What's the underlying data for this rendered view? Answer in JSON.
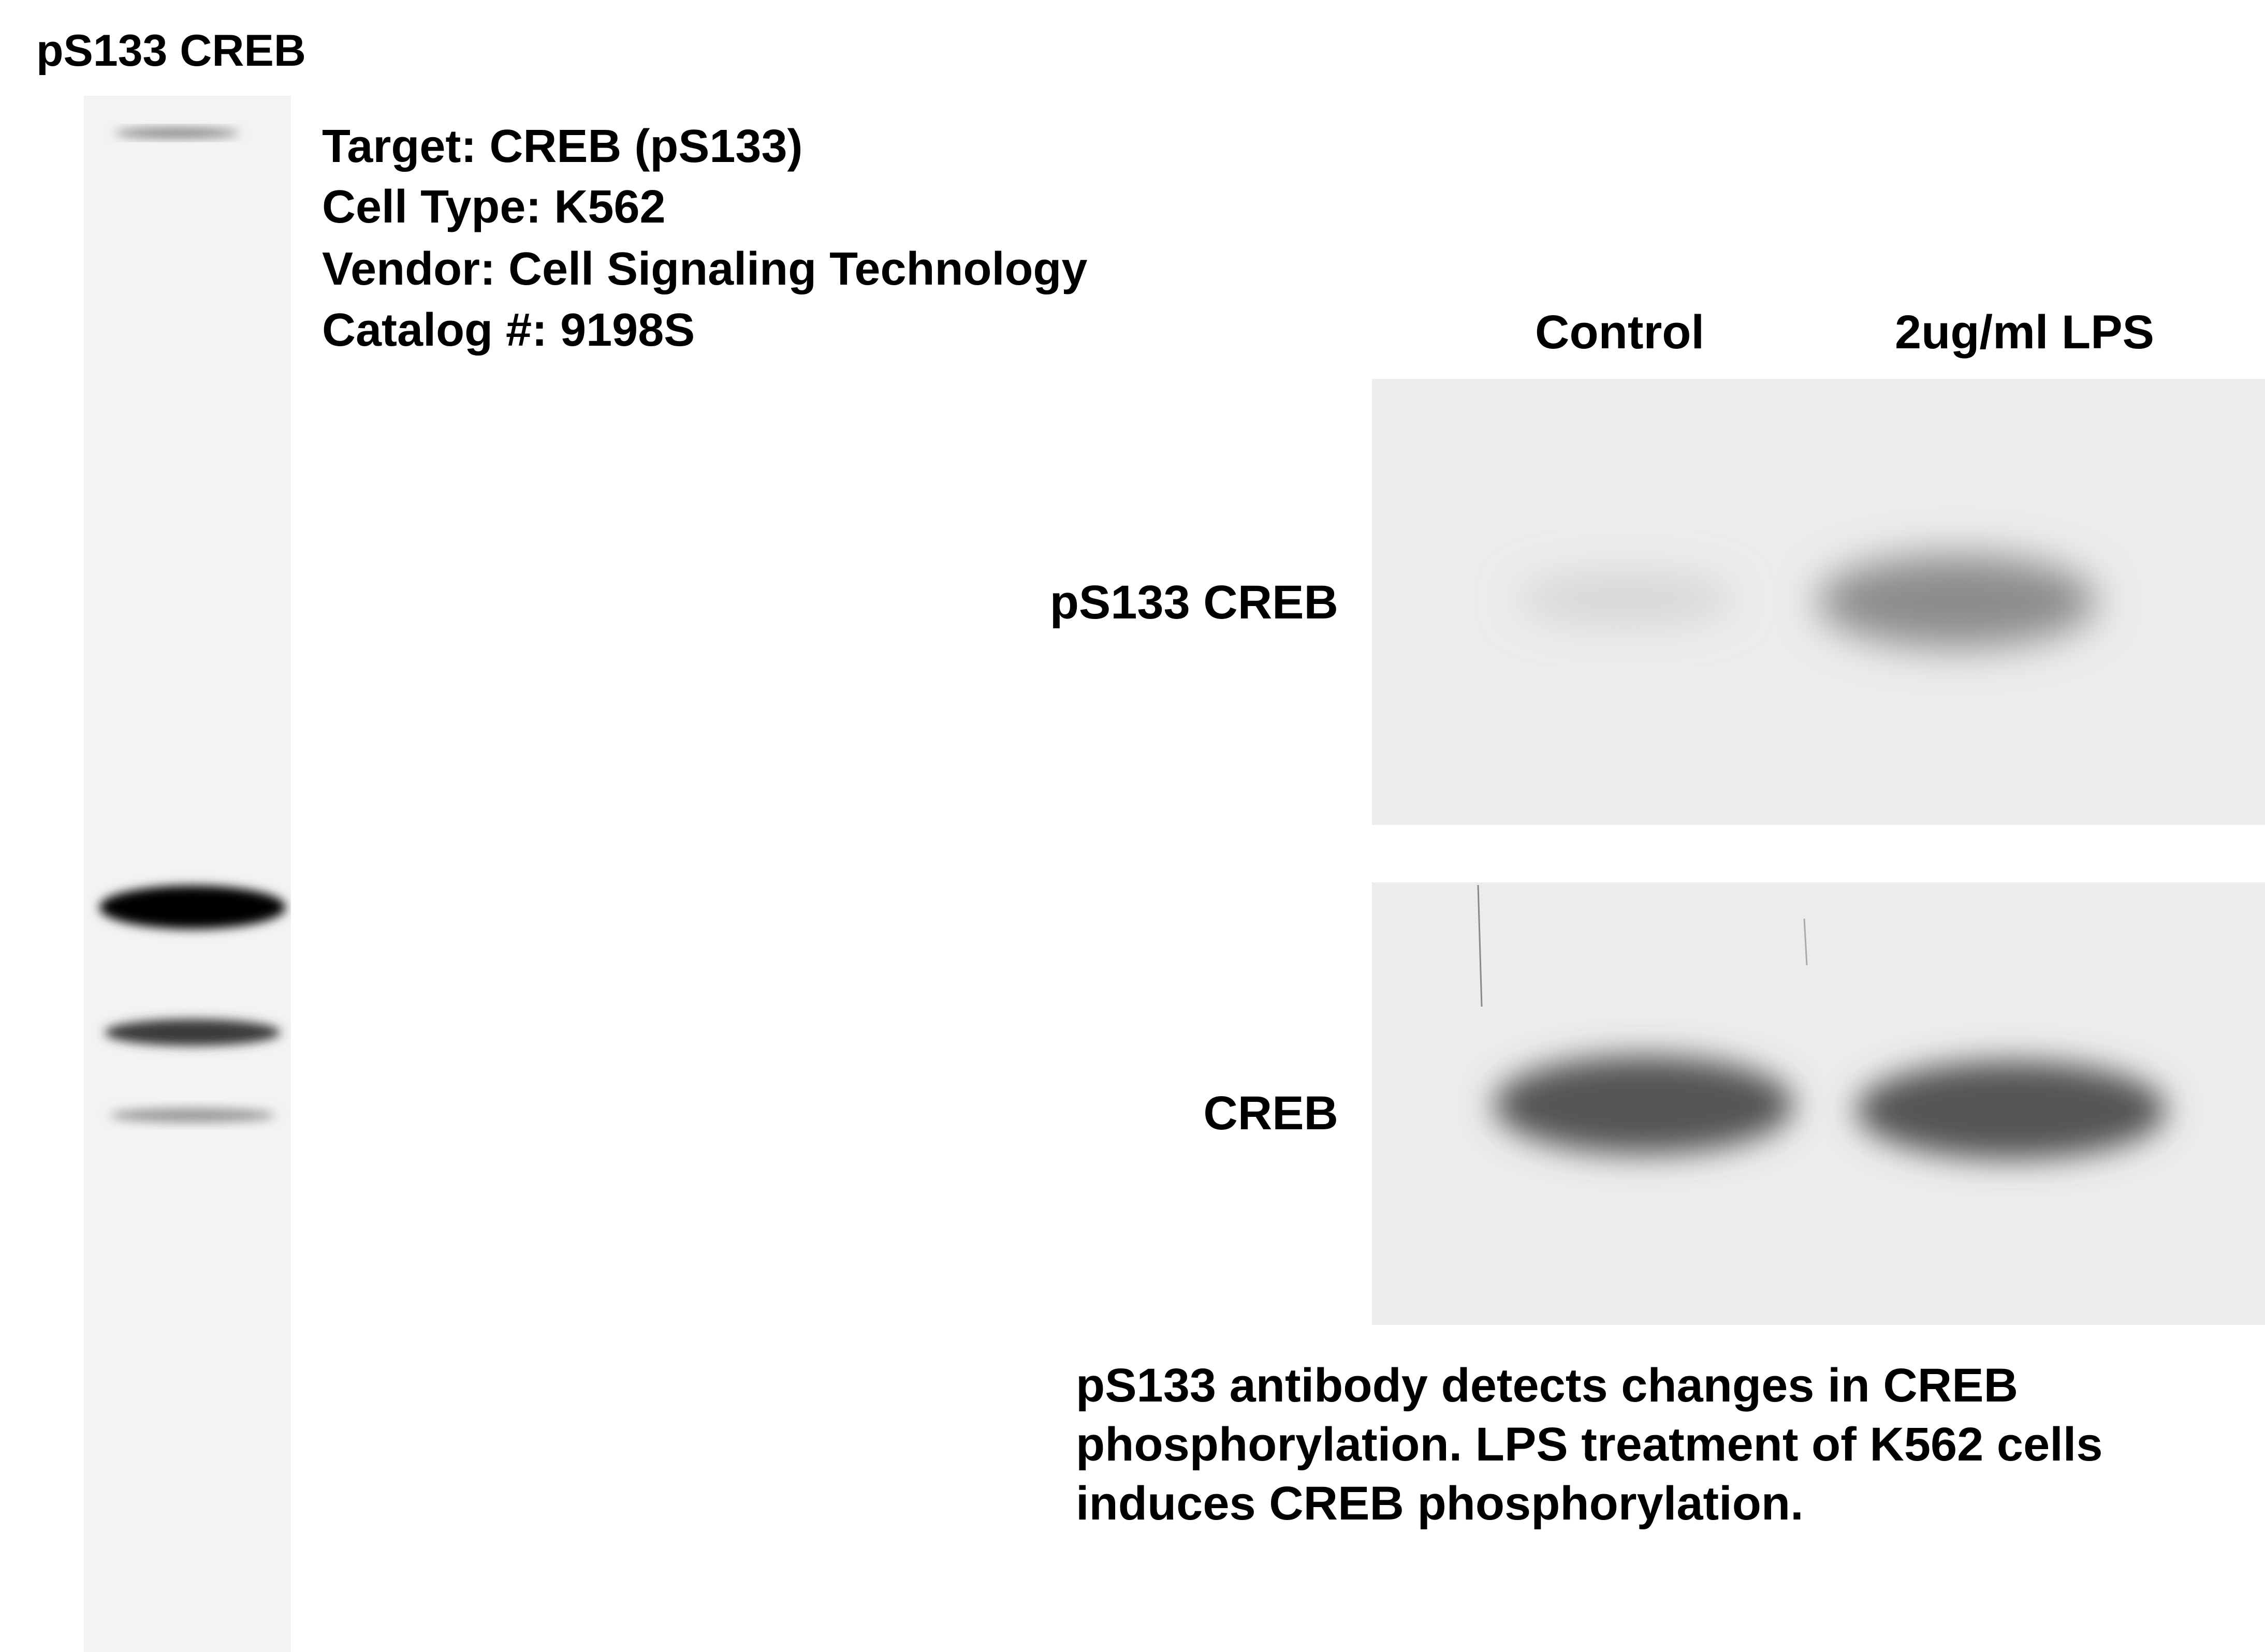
{
  "left_lane": {
    "title": "pS133 CREB"
  },
  "metadata": {
    "lines": [
      "Target: CREB (pS133)",
      "Cell Type: K562",
      "Vendor: Cell Signaling Technology",
      "Catalog #: 9198S"
    ]
  },
  "blot": {
    "columns": [
      "Control",
      "2ug/ml LPS"
    ],
    "rows": [
      "pS133 CREB",
      "CREB"
    ]
  },
  "caption": {
    "lines": [
      "pS133 antibody detects changes in CREB",
      "phosphorylation.  LPS treatment of K562 cells",
      "induces CREB phosphorylation."
    ]
  }
}
